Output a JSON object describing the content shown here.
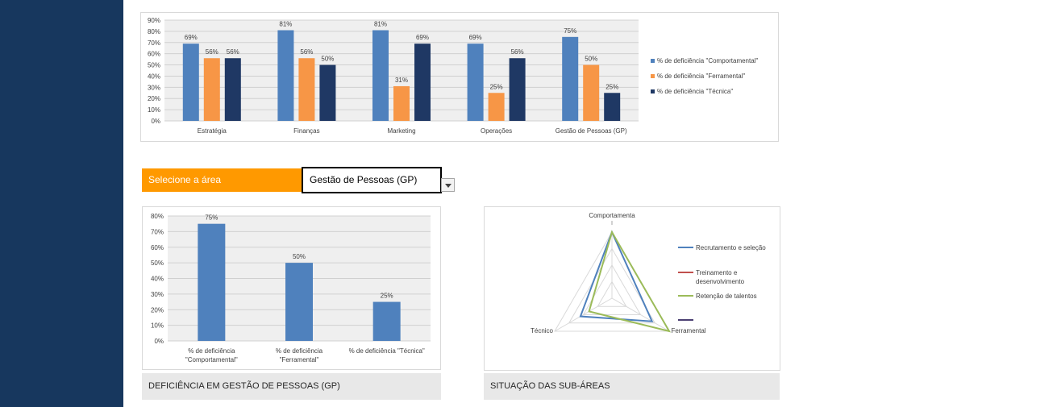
{
  "selector": {
    "label": "Selecione a área",
    "value": "Gestão de Pessoas (GP)"
  },
  "captions": {
    "left": "DEFICIÊNCIA EM GESTÃO DE PESSOAS (GP)",
    "right": "SITUAÇÃO DAS SUB-ÁREAS"
  },
  "colors": {
    "sidebar": "#17375e",
    "accent": "#ff9900",
    "comportamental": "#4f81bd",
    "ferramental": "#f79646",
    "tecnica": "#1f3864"
  },
  "chart_data": [
    {
      "type": "bar",
      "categories": [
        "Estratégia",
        "Finanças",
        "Marketing",
        "Operações",
        "Gestão de Pessoas (GP)"
      ],
      "series": [
        {
          "name": "% de deficiência \"Comportamental\"",
          "values": [
            69,
            81,
            81,
            69,
            75
          ]
        },
        {
          "name": "% de deficiência \"Ferramental\"",
          "values": [
            56,
            56,
            31,
            25,
            50
          ]
        },
        {
          "name": "% de deficiência \"Técnica\"",
          "values": [
            56,
            50,
            69,
            56,
            25
          ]
        }
      ],
      "value_labels": [
        [
          "69%",
          "81%",
          "81%",
          "69%",
          "75%"
        ],
        [
          "56%",
          "56%",
          "31%",
          "25%",
          "50%"
        ],
        [
          "56%",
          "50%",
          "69%",
          "56%",
          "25%"
        ]
      ],
      "yticks": [
        "0%",
        "10%",
        "20%",
        "30%",
        "40%",
        "50%",
        "60%",
        "70%",
        "80%",
        "90%"
      ],
      "ylim": [
        0,
        90
      ],
      "grid": true,
      "legend": "right"
    },
    {
      "type": "bar",
      "categories": [
        [
          "% de deficiência",
          "\"Comportamental\""
        ],
        [
          "% de deficiência",
          "\"Ferramental\""
        ],
        [
          "% de deficiência \"Técnica\""
        ]
      ],
      "values": [
        75,
        50,
        25
      ],
      "value_labels": [
        "75%",
        "50%",
        "25%"
      ],
      "yticks": [
        "0%",
        "10%",
        "20%",
        "30%",
        "40%",
        "50%",
        "60%",
        "70%",
        "80%"
      ],
      "ylim": [
        0,
        80
      ],
      "grid": true
    },
    {
      "type": "radar",
      "axes": [
        "Comportamenta",
        "Ferramental",
        "Técnico"
      ],
      "series": [
        {
          "name": "Recrutamento e seleção",
          "values": [
            100,
            70,
            55
          ]
        },
        {
          "name": [
            "Treinamento e",
            "desenvolvimento"
          ],
          "values": [
            0,
            0,
            0
          ]
        },
        {
          "name": "Retenção de talentos",
          "values": [
            100,
            100,
            40
          ]
        },
        {
          "name": "",
          "values": [
            0,
            0,
            0
          ]
        }
      ],
      "legend": "right"
    }
  ]
}
